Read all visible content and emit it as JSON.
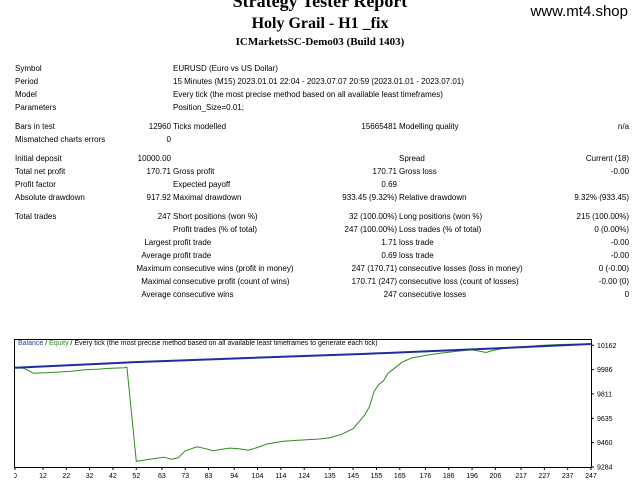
{
  "header": {
    "title": "Strategy Tester Report",
    "subtitle": "Holy Grail - H1 _fix",
    "server": "ICMarketsSC-Demo03 (Build 1403)",
    "site": "www.mt4.shop"
  },
  "info": {
    "symbol_label": "Symbol",
    "symbol": "EURUSD (Euro vs US Dollar)",
    "period_label": "Period",
    "period": "15 Minutes (M15) 2023.01.01 22:04 - 2023.07.07 20:59 (2023.01.01 - 2023.07.01)",
    "model_label": "Model",
    "model": "Every tick (the most precise method based on all available least timeframes)",
    "params_label": "Parameters",
    "params": "Position_Size=0.01;"
  },
  "stats": {
    "bars_label": "Bars in test",
    "bars": "12960",
    "ticks_label": "Ticks modelled",
    "ticks": "15665481",
    "quality_label": "Modelling quality",
    "quality": "n/a",
    "mismatch_label": "Mismatched charts errors",
    "mismatch": "0",
    "deposit_label": "Initial deposit",
    "deposit": "10000.00",
    "spread_label": "Spread",
    "spread": "Current (18)",
    "net_label": "Total net profit",
    "net": "170.71",
    "gross_profit_label": "Gross profit",
    "gross_profit": "170.71",
    "gross_loss_label": "Gross loss",
    "gross_loss": "-0.00",
    "pf_label": "Profit factor",
    "pf": "",
    "payoff_label": "Expected payoff",
    "payoff": "0.69",
    "abs_dd_label": "Absolute drawdown",
    "abs_dd": "917.92",
    "max_dd_label": "Maximal drawdown",
    "max_dd": "933.45 (9.32%)",
    "rel_dd_label": "Relative drawdown",
    "rel_dd": "9.32% (933.45)",
    "trades_label": "Total trades",
    "trades": "247",
    "short_label": "Short positions (won %)",
    "short": "32 (100.00%)",
    "long_label": "Long positions (won %)",
    "long": "215 (100.00%)",
    "pt_label": "Profit trades (% of total)",
    "pt": "247 (100.00%)",
    "lt_label": "Loss trades (% of total)",
    "lt": "0 (0.00%)",
    "largest": "Largest",
    "lpt_label": "profit trade",
    "lpt": "1.71",
    "llt_label": "loss trade",
    "llt": "-0.00",
    "average": "Average",
    "apt_label": "profit trade",
    "apt": "0.69",
    "alt_label": "loss trade",
    "alt": "-0.00",
    "maximum": "Maximum",
    "mcw_label": "consecutive wins (profit in money)",
    "mcw": "247 (170.71)",
    "mcl_label": "consecutive losses (loss in money)",
    "mcl": "0 (-0.00)",
    "maximal": "Maximal",
    "mcp_label": "consecutive profit (count of wins)",
    "mcp": "170.71 (247)",
    "mclo_label": "consecutive loss (count of losses)",
    "mclo": "-0.00 (0)",
    "average2": "Average",
    "acw_label": "consecutive wins",
    "acw": "247",
    "acl_label": "consecutive losses",
    "acl": "0"
  },
  "chart_data": {
    "type": "line",
    "legend": {
      "balance": "Balance",
      "sep": " / ",
      "equity": "Equity",
      "desc": " / Every tick (the most precise method based on all available least timeframes to generate each tick)"
    },
    "colors": {
      "balance": "#1f2f9a",
      "equity": "#2e8b1e"
    },
    "x_ticks": [
      "0",
      "12",
      "22",
      "32",
      "42",
      "52",
      "63",
      "73",
      "83",
      "94",
      "104",
      "114",
      "124",
      "135",
      "145",
      "155",
      "165",
      "176",
      "186",
      "196",
      "206",
      "217",
      "227",
      "237",
      "247"
    ],
    "y_ticks": [
      "10162",
      "9986",
      "9811",
      "9635",
      "9460",
      "9284"
    ],
    "ylim": [
      9284,
      10200
    ],
    "xlim": [
      0,
      247
    ],
    "balance": [
      [
        0,
        10000
      ],
      [
        50,
        10039
      ],
      [
        100,
        10070
      ],
      [
        150,
        10100
      ],
      [
        200,
        10135
      ],
      [
        247,
        10171
      ]
    ],
    "equity": [
      [
        0,
        10000
      ],
      [
        4,
        9995
      ],
      [
        8,
        9960
      ],
      [
        14,
        9965
      ],
      [
        20,
        9970
      ],
      [
        24,
        9975
      ],
      [
        30,
        9985
      ],
      [
        36,
        9990
      ],
      [
        40,
        9995
      ],
      [
        47,
        10000
      ],
      [
        48,
        10005
      ],
      [
        52,
        9325
      ],
      [
        56,
        9335
      ],
      [
        60,
        9345
      ],
      [
        64,
        9355
      ],
      [
        67,
        9340
      ],
      [
        70,
        9350
      ],
      [
        73,
        9400
      ],
      [
        78,
        9430
      ],
      [
        82,
        9415
      ],
      [
        85,
        9400
      ],
      [
        88,
        9410
      ],
      [
        92,
        9420
      ],
      [
        96,
        9415
      ],
      [
        100,
        9405
      ],
      [
        104,
        9425
      ],
      [
        108,
        9450
      ],
      [
        115,
        9470
      ],
      [
        120,
        9475
      ],
      [
        125,
        9480
      ],
      [
        130,
        9485
      ],
      [
        135,
        9495
      ],
      [
        140,
        9520
      ],
      [
        145,
        9560
      ],
      [
        148,
        9620
      ],
      [
        150,
        9660
      ],
      [
        152,
        9720
      ],
      [
        154,
        9830
      ],
      [
        156,
        9880
      ],
      [
        158,
        9905
      ],
      [
        160,
        9960
      ],
      [
        163,
        10000
      ],
      [
        166,
        10040
      ],
      [
        170,
        10070
      ],
      [
        175,
        10085
      ],
      [
        180,
        10100
      ],
      [
        185,
        10110
      ],
      [
        190,
        10120
      ],
      [
        196,
        10130
      ],
      [
        202,
        10110
      ],
      [
        205,
        10125
      ],
      [
        210,
        10140
      ],
      [
        218,
        10150
      ],
      [
        225,
        10160
      ],
      [
        230,
        10165
      ],
      [
        236,
        10168
      ],
      [
        241,
        10170
      ],
      [
        247,
        10171
      ]
    ]
  }
}
